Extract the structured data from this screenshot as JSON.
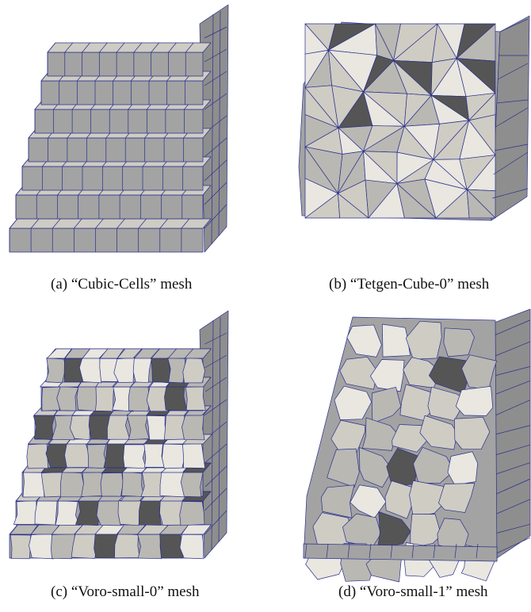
{
  "figure": {
    "panels": [
      {
        "id": "a",
        "caption": "(a) “Cubic-Cells” mesh",
        "mesh": "staircase-cubic"
      },
      {
        "id": "b",
        "caption": "(b) “Tetgen-Cube-0” mesh",
        "mesh": "cube-tetrahedral"
      },
      {
        "id": "c",
        "caption": "(c) “Voro-small-0” mesh",
        "mesh": "staircase-voronoi"
      },
      {
        "id": "d",
        "caption": "(d) “Voro-small-1” mesh",
        "mesh": "staircase-voronoi-coarse"
      }
    ],
    "colors": {
      "edge": "#2a2f8c",
      "face_top": "#cfccc4",
      "face_front": "#a3a3a3",
      "face_side": "#8e8e8e",
      "face_light": "#e9e7e0",
      "face_dark": "#555555"
    }
  }
}
